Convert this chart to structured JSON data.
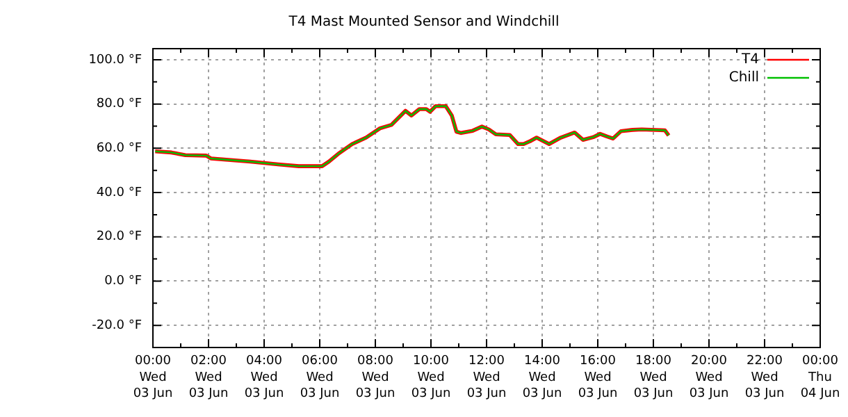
{
  "chart_data": {
    "type": "line",
    "title": "T4 Mast Mounted Sensor and Windchill",
    "x": [
      "--06-03T00:05",
      "--06-03T00:40",
      "--06-03T01:10",
      "--06-03T01:55",
      "--06-03T02:05",
      "--06-03T03:30",
      "--06-03T04:30",
      "--06-03T05:15",
      "--06-03T06:05",
      "--06-03T06:20",
      "--06-03T06:40",
      "--06-03T07:10",
      "--06-03T07:40",
      "--06-03T08:10",
      "--06-03T08:35",
      "--06-03T09:05",
      "--06-03T09:18",
      "--06-03T09:35",
      "--06-03T09:50",
      "--06-03T09:58",
      "--06-03T10:10",
      "--06-03T10:32",
      "--06-03T10:45",
      "--06-03T10:55",
      "--06-03T11:05",
      "--06-03T11:30",
      "--06-03T11:50",
      "--06-03T12:05",
      "--06-03T12:20",
      "--06-03T12:50",
      "--06-03T13:08",
      "--06-03T13:20",
      "--06-03T13:35",
      "--06-03T13:48",
      "--06-03T14:15",
      "--06-03T14:40",
      "--06-03T15:10",
      "--06-03T15:28",
      "--06-03T15:50",
      "--06-03T16:05",
      "--06-03T16:20",
      "--06-03T16:33",
      "--06-03T16:50",
      "--06-03T17:15",
      "--06-03T17:35",
      "--06-03T18:25",
      "--06-03T18:33"
    ],
    "series": [
      {
        "name": "T4",
        "color": "#ff0000",
        "values": [
          58.6,
          58.1,
          56.9,
          56.7,
          55.4,
          54.0,
          52.7,
          51.9,
          51.9,
          54.0,
          57.5,
          61.9,
          64.8,
          69.0,
          70.6,
          76.9,
          74.8,
          77.7,
          77.7,
          76.5,
          79.0,
          79.0,
          74.8,
          67.5,
          66.9,
          67.9,
          69.8,
          68.5,
          66.3,
          66.0,
          61.9,
          61.9,
          63.3,
          64.8,
          61.9,
          64.8,
          67.1,
          63.8,
          65.0,
          66.5,
          65.3,
          64.4,
          67.7,
          68.3,
          68.5,
          68.1,
          65.8
        ]
      },
      {
        "name": "Chill",
        "color": "#00c000",
        "values": [
          58.6,
          58.1,
          56.9,
          56.7,
          55.4,
          54.0,
          52.7,
          51.9,
          51.9,
          54.0,
          57.5,
          61.9,
          64.8,
          69.0,
          70.6,
          76.9,
          74.8,
          77.7,
          77.7,
          76.5,
          79.0,
          79.0,
          74.8,
          67.5,
          66.9,
          67.9,
          69.8,
          68.5,
          66.3,
          66.0,
          61.9,
          61.9,
          63.3,
          64.8,
          61.9,
          64.8,
          67.1,
          63.8,
          65.0,
          66.5,
          65.3,
          64.4,
          67.7,
          68.3,
          68.5,
          68.1,
          65.8
        ]
      }
    ],
    "xlim": [
      "--06-03T00:00",
      "--06-04T00:00"
    ],
    "xticks": [
      {
        "value": "--06-03T00:00",
        "label": "00:00\nWed\n03 Jun"
      },
      {
        "value": "--06-03T01:00",
        "label": null
      },
      {
        "value": "--06-03T02:00",
        "label": "02:00\nWed\n03 Jun"
      },
      {
        "value": "--06-03T03:00",
        "label": null
      },
      {
        "value": "--06-03T04:00",
        "label": "04:00\nWed\n03 Jun"
      },
      {
        "value": "--06-03T05:00",
        "label": null
      },
      {
        "value": "--06-03T06:00",
        "label": "06:00\nWed\n03 Jun"
      },
      {
        "value": "--06-03T07:00",
        "label": null
      },
      {
        "value": "--06-03T08:00",
        "label": "08:00\nWed\n03 Jun"
      },
      {
        "value": "--06-03T09:00",
        "label": null
      },
      {
        "value": "--06-03T10:00",
        "label": "10:00\nWed\n03 Jun"
      },
      {
        "value": "--06-03T11:00",
        "label": null
      },
      {
        "value": "--06-03T12:00",
        "label": "12:00\nWed\n03 Jun"
      },
      {
        "value": "--06-03T13:00",
        "label": null
      },
      {
        "value": "--06-03T14:00",
        "label": "14:00\nWed\n03 Jun"
      },
      {
        "value": "--06-03T15:00",
        "label": null
      },
      {
        "value": "--06-03T16:00",
        "label": "16:00\nWed\n03 Jun"
      },
      {
        "value": "--06-03T17:00",
        "label": null
      },
      {
        "value": "--06-03T18:00",
        "label": "18:00\nWed\n03 Jun"
      },
      {
        "value": "--06-03T19:00",
        "label": null
      },
      {
        "value": "--06-03T20:00",
        "label": "20:00\nWed\n03 Jun"
      },
      {
        "value": "--06-03T21:00",
        "label": null
      },
      {
        "value": "--06-03T22:00",
        "label": "22:00\nWed\n03 Jun"
      },
      {
        "value": "--06-03T23:00",
        "label": null
      },
      {
        "value": "--06-04T00:00",
        "label": "00:00\nThu\n04 Jun"
      }
    ],
    "ylim": [
      -30,
      105
    ],
    "yticks": [
      {
        "value": -20,
        "label": "-20.0 °F"
      },
      {
        "value": -10,
        "label": null
      },
      {
        "value": 0,
        "label": "0.0 °F"
      },
      {
        "value": 10,
        "label": null
      },
      {
        "value": 20,
        "label": "20.0 °F"
      },
      {
        "value": 30,
        "label": null
      },
      {
        "value": 40,
        "label": "40.0 °F"
      },
      {
        "value": 50,
        "label": null
      },
      {
        "value": 60,
        "label": "60.0 °F"
      },
      {
        "value": 70,
        "label": null
      },
      {
        "value": 80,
        "label": "80.0 °F"
      },
      {
        "value": 90,
        "label": null
      },
      {
        "value": 100,
        "label": "100.0 °F"
      }
    ],
    "grid": true,
    "legend": "top right",
    "marker": "none",
    "line_style": "solid"
  }
}
